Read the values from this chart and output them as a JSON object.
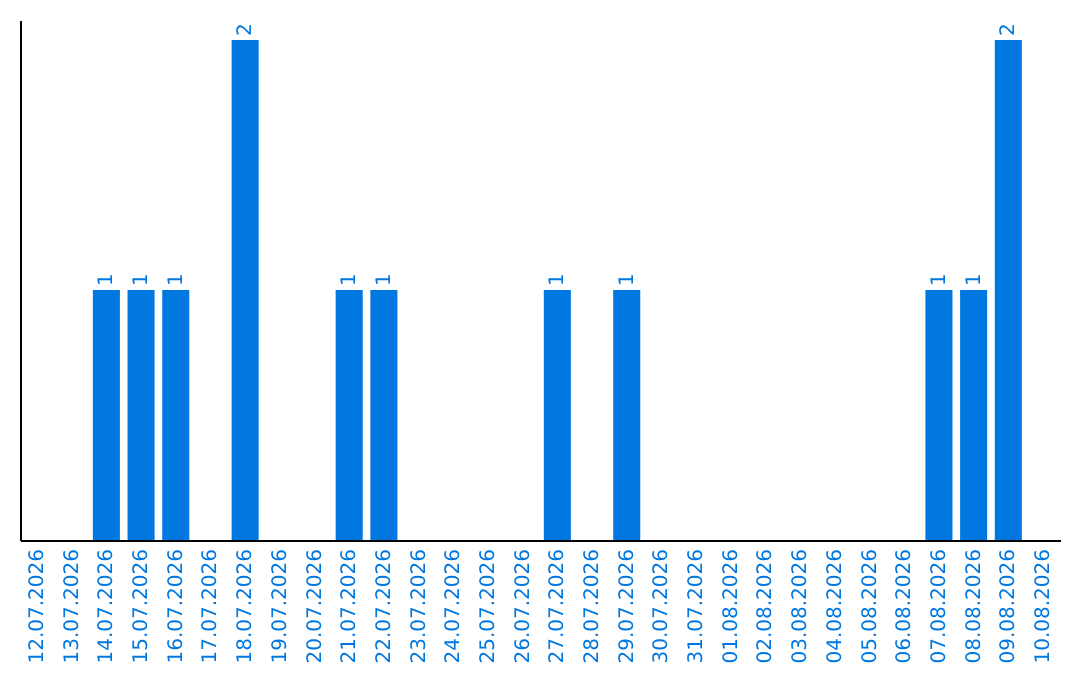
{
  "chart_data": {
    "type": "bar",
    "categories": [
      "12.07.2026",
      "13.07.2026",
      "14.07.2026",
      "15.07.2026",
      "16.07.2026",
      "17.07.2026",
      "18.07.2026",
      "19.07.2026",
      "20.07.2026",
      "21.07.2026",
      "22.07.2026",
      "23.07.2026",
      "24.07.2026",
      "25.07.2026",
      "26.07.2026",
      "27.07.2026",
      "28.07.2026",
      "29.07.2026",
      "30.07.2026",
      "31.07.2026",
      "01.08.2026",
      "02.08.2026",
      "03.08.2026",
      "04.08.2026",
      "05.08.2026",
      "06.08.2026",
      "07.08.2026",
      "08.08.2026",
      "09.08.2026",
      "10.08.2026"
    ],
    "values": [
      null,
      null,
      1,
      1,
      1,
      null,
      2,
      null,
      null,
      1,
      1,
      null,
      null,
      null,
      null,
      1,
      null,
      1,
      null,
      null,
      null,
      null,
      null,
      null,
      null,
      null,
      1,
      1,
      2,
      null
    ],
    "color": "#0078e0",
    "ylim": [
      0,
      2.08
    ],
    "data_labels": true,
    "tick_labels": "x",
    "grid": false
  }
}
